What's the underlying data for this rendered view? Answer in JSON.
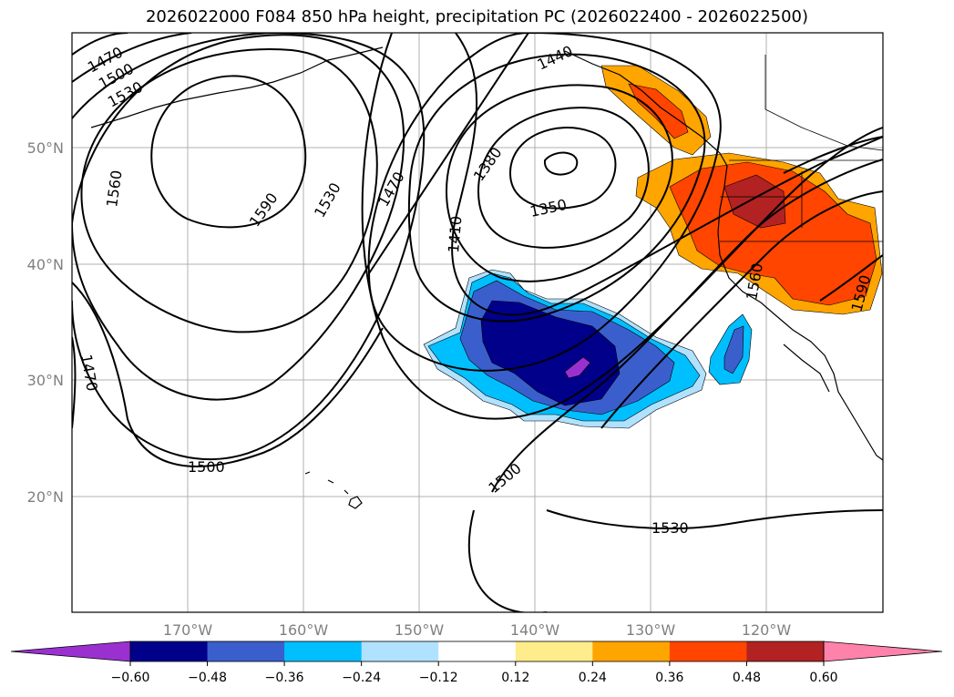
{
  "title": "2026022000 F084 850 hPa height, precipitation PC (2026022400 - 2026022500)",
  "lat_labels": [
    "50°N",
    "40°N",
    "30°N",
    "20°N"
  ],
  "lon_labels": [
    "170°W",
    "160°W",
    "150°W",
    "140°W",
    "130°W",
    "120°W"
  ],
  "contour_labels": [
    "1470",
    "1500",
    "1530",
    "1560",
    "1590",
    "1530",
    "1470",
    "1410",
    "1380",
    "1350",
    "1440",
    "1470",
    "1500",
    "1500",
    "1530",
    "1560",
    "1590"
  ],
  "colorbar": {
    "ticks": [
      "−0.60",
      "−0.48",
      "−0.36",
      "−0.24",
      "−0.12",
      "0.12",
      "0.24",
      "0.36",
      "0.48",
      "0.60"
    ],
    "colors": [
      "#9b30d0",
      "#00008b",
      "#3a5fcd",
      "#00bfff",
      "#b0e2ff",
      "#ffffff",
      "#ffec8b",
      "#ffa500",
      "#ff4500",
      "#b22222",
      "#ff82ab"
    ]
  }
}
